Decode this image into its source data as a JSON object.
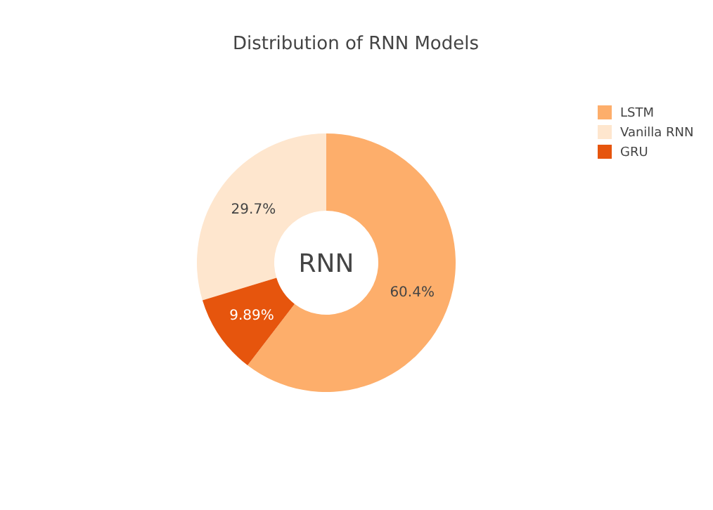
{
  "chart_data": {
    "type": "donut",
    "title": "Distribution of RNN Models",
    "categories": [
      "LSTM",
      "Vanilla RNN",
      "GRU"
    ],
    "values": [
      60.4,
      29.7,
      9.89
    ],
    "value_labels": [
      "60.4%",
      "29.7%",
      "9.89%"
    ],
    "colors": [
      "#fdae6b",
      "#fee6ce",
      "#e6550d"
    ],
    "annotations": [
      "RNN"
    ],
    "legend": "top right"
  }
}
